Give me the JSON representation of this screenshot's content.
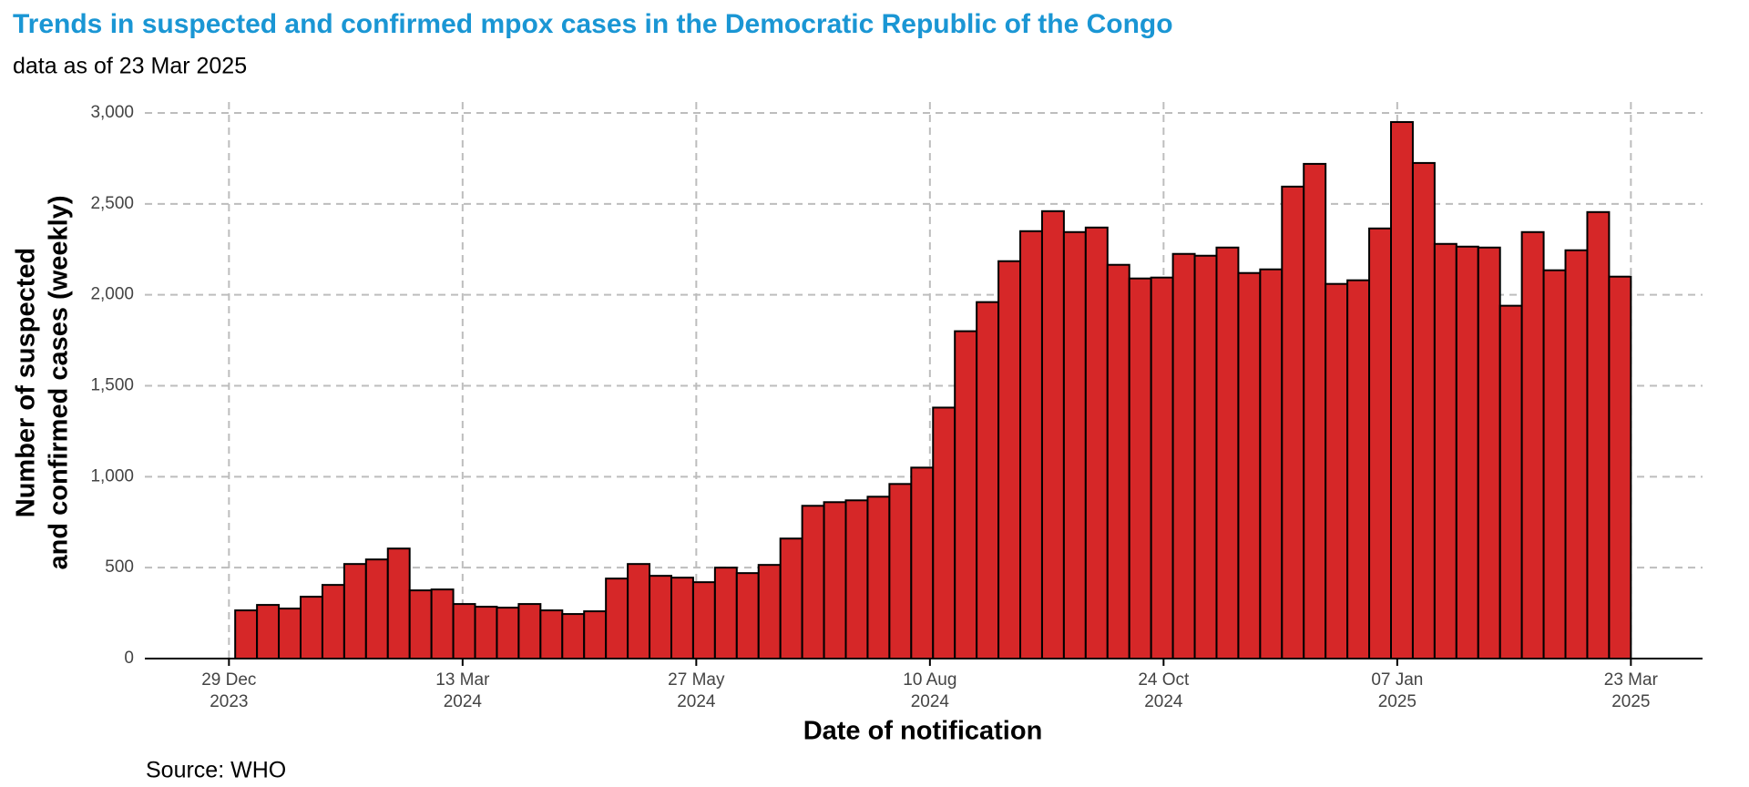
{
  "chart_data": {
    "type": "histogram",
    "title": "Trends in suspected and confirmed mpox cases in the Democratic Republic of the Congo",
    "subtitle": "data as of 23 Mar 2025",
    "x_label": "Date of notification",
    "y_label": [
      "Number of suspected",
      "and confirmed cases (weekly)"
    ],
    "source": "Source: WHO",
    "color": "#d62728",
    "edge_color": "#000000",
    "grid": true,
    "bins": [
      "2023-12-31",
      "2024-01-07",
      "2024-01-14",
      "2024-01-21",
      "2024-01-28",
      "2024-02-04",
      "2024-02-11",
      "2024-02-18",
      "2024-02-25",
      "2024-03-03",
      "2024-03-10",
      "2024-03-17",
      "2024-03-24",
      "2024-03-31",
      "2024-04-07",
      "2024-04-14",
      "2024-04-21",
      "2024-04-28",
      "2024-05-05",
      "2024-05-12",
      "2024-05-19",
      "2024-05-26",
      "2024-06-02",
      "2024-06-09",
      "2024-06-16",
      "2024-06-23",
      "2024-06-30",
      "2024-07-07",
      "2024-07-14",
      "2024-07-21",
      "2024-07-28",
      "2024-08-04",
      "2024-08-11",
      "2024-08-18",
      "2024-08-25",
      "2024-09-01",
      "2024-09-08",
      "2024-09-15",
      "2024-09-22",
      "2024-09-29",
      "2024-10-06",
      "2024-10-13",
      "2024-10-20",
      "2024-10-27",
      "2024-11-03",
      "2024-11-10",
      "2024-11-17",
      "2024-11-24",
      "2024-12-01",
      "2024-12-08",
      "2024-12-15",
      "2024-12-22",
      "2024-12-29",
      "2025-01-05",
      "2025-01-12",
      "2025-01-19",
      "2025-01-26",
      "2025-02-02",
      "2025-02-09",
      "2025-02-16",
      "2025-02-23",
      "2025-03-02",
      "2025-03-09",
      "2025-03-16",
      "2025-03-23"
    ],
    "values": [
      265,
      295,
      275,
      340,
      405,
      520,
      545,
      605,
      375,
      380,
      300,
      285,
      280,
      300,
      265,
      245,
      260,
      440,
      520,
      455,
      445,
      420,
      500,
      470,
      515,
      660,
      840,
      860,
      870,
      890,
      960,
      1050,
      1380,
      1800,
      1960,
      2185,
      2350,
      2460,
      2345,
      2370,
      2165,
      2090,
      2095,
      2225,
      2215,
      2260,
      2120,
      2140,
      2595,
      2720,
      2060,
      2080,
      2365,
      2950,
      2725,
      2280,
      2265,
      2260,
      1940,
      2345,
      2135,
      2245,
      2455,
      2100
    ],
    "xlim": [
      "2023-12-02",
      "2025-04-15"
    ],
    "xticks": [
      {
        "value": "2023-12-29",
        "label": "29 Dec\n2023"
      },
      {
        "value": "2024-03-13",
        "label": "13 Mar\n2024"
      },
      {
        "value": "2024-05-27",
        "label": "27 May\n2024"
      },
      {
        "value": "2024-08-10",
        "label": "10 Aug\n2024"
      },
      {
        "value": "2024-10-24",
        "label": "24 Oct\n2024"
      },
      {
        "value": "2025-01-07",
        "label": "07 Jan\n2025"
      },
      {
        "value": "2025-03-23",
        "label": "23 Mar\n2025"
      }
    ],
    "ylim": [
      0,
      3000
    ],
    "yticks": [
      0,
      {
        "value": 500,
        "label": "500"
      },
      {
        "value": 1000,
        "label": "1,000"
      },
      {
        "value": 1500,
        "label": "1,500"
      },
      {
        "value": 2000,
        "label": "2,000"
      },
      {
        "value": 2500,
        "label": "2,500"
      },
      {
        "value": 3000,
        "label": "3,000"
      }
    ]
  }
}
